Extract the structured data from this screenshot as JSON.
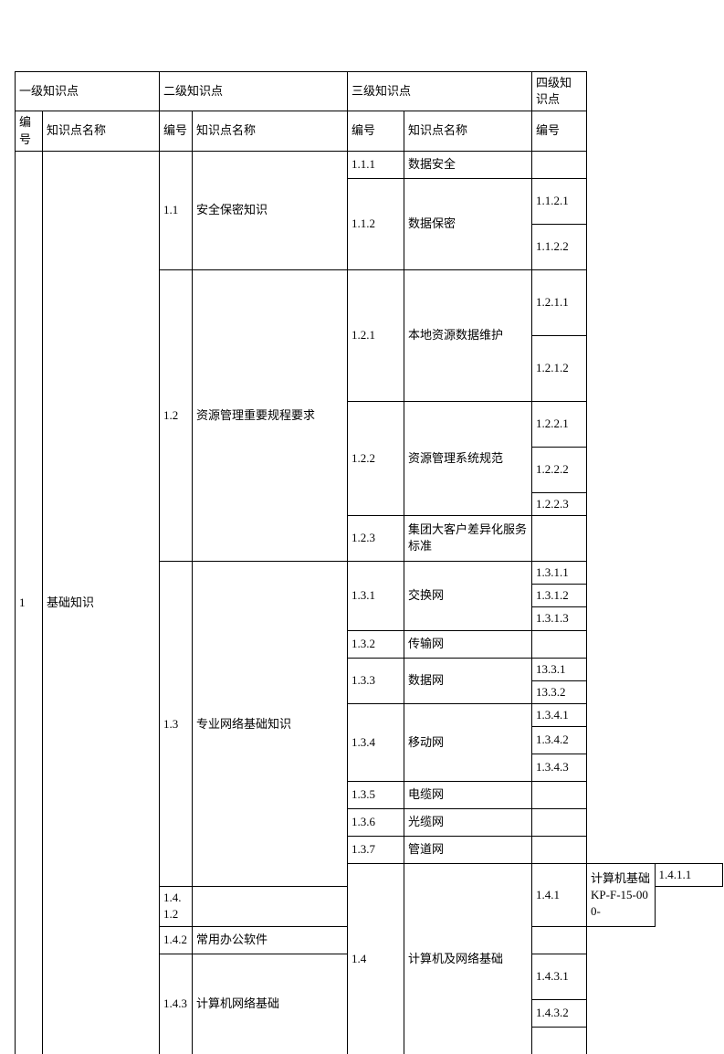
{
  "headers": {
    "level1": "一级知识点",
    "level2": "二级知识点",
    "level3": "三级知识点",
    "level4": "四级知识点",
    "code": "编号",
    "name": "知识点名称"
  },
  "level1": {
    "code": "1",
    "name": "基础知识"
  },
  "l2": {
    "r11": {
      "code": "1.1",
      "name": "安全保密知识"
    },
    "r12": {
      "code": "1.2",
      "name": "资源管理重要规程要求"
    },
    "r13": {
      "code": "1.3",
      "name": "专业网络基础知识"
    },
    "r14": {
      "code": "1.4",
      "name": "计算机及网络基础"
    }
  },
  "l3": {
    "r111": {
      "code": "1.1.1",
      "name": "数据安全"
    },
    "r112": {
      "code": "1.1.2",
      "name": "数据保密"
    },
    "r121": {
      "code": "1.2.1",
      "name": "本地资源数据维护"
    },
    "r122": {
      "code": "1.2.2",
      "name": "资源管理系统规范"
    },
    "r123": {
      "code": "1.2.3",
      "name": "集团大客户差异化服务标准"
    },
    "r131": {
      "code": "1.3.1",
      "name": "交换网"
    },
    "r132": {
      "code": "1.3.2",
      "name": "传输网"
    },
    "r133": {
      "code": "1.3.3",
      "name": "数据网"
    },
    "r134": {
      "code": "1.3.4",
      "name": "移动网"
    },
    "r135": {
      "code": "1.3.5",
      "name": "电缆网"
    },
    "r136": {
      "code": "1.3.6",
      "name": "光缆网"
    },
    "r137": {
      "code": "1.3.7",
      "name": "管道网"
    },
    "r141": {
      "code": "1.4.1",
      "name": "计算机基础\nKP-F-15-000-"
    },
    "r142": {
      "code": "1.4.2",
      "name": "常用办公软件"
    },
    "r143": {
      "code": "1.4.3",
      "name": "计算机网络基础"
    }
  },
  "l4": {
    "c1121": "1.1.2.1",
    "c1122": "1.1.2.2",
    "c1211": "1.2.1.1",
    "c1212": "1.2.1.2",
    "c1221": "1.2.2.1",
    "c1222": "1.2.2.2",
    "c1223": "1.2.2.3",
    "c1311": "1.3.1.1",
    "c1312": "1.3.1.2",
    "c1313": "1.3.1.3",
    "c1331": "13.3.1",
    "c1332": "13.3.2",
    "c1341": "1.3.4.1",
    "c1342": "1.3.4.2",
    "c1343": "1.3.4.3",
    "c1411": "1.4.1.1",
    "c1412": "1.4.1.2",
    "c1431": "1.4.3.1",
    "c1432": "1.4.3.2"
  }
}
